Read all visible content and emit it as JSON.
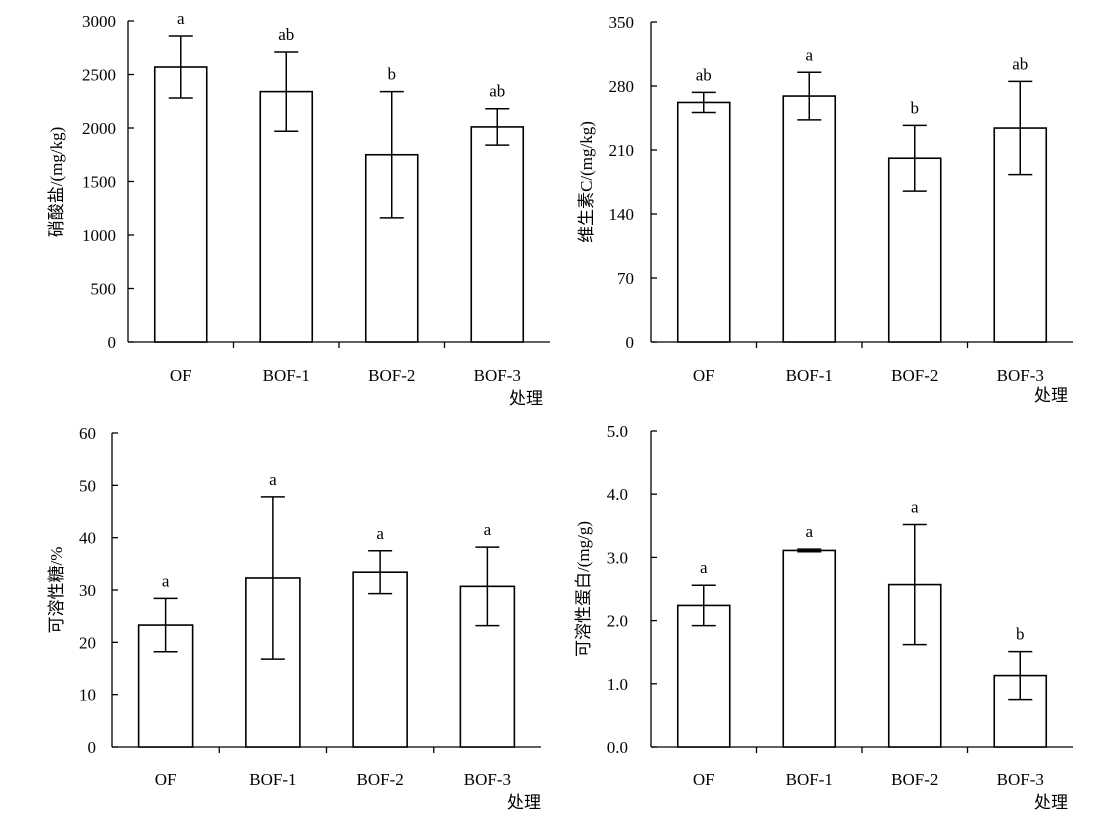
{
  "chart_data": [
    {
      "type": "bar",
      "categories": [
        "OF",
        "BOF-1",
        "BOF-2",
        "BOF-3"
      ],
      "values": [
        2570,
        2340,
        1750,
        2010
      ],
      "errors": [
        290,
        370,
        590,
        170
      ],
      "significance": [
        "a",
        "ab",
        "b",
        "ab"
      ],
      "ylabel": "硝酸盐/(mg/kg)",
      "xlabel": "处理",
      "ylim": [
        0,
        3000
      ],
      "yticks": [
        0,
        500,
        1000,
        1500,
        2000,
        2500,
        3000
      ],
      "ytick_labels": [
        "0",
        "500",
        "1000",
        "1500",
        "2000",
        "2500",
        "3000"
      ]
    },
    {
      "type": "bar",
      "categories": [
        "OF",
        "BOF-1",
        "BOF-2",
        "BOF-3"
      ],
      "values": [
        262,
        269,
        201,
        234
      ],
      "errors": [
        11,
        26,
        36,
        51
      ],
      "significance": [
        "ab",
        "a",
        "b",
        "ab"
      ],
      "ylabel": "维生素C/(mg/kg)",
      "xlabel": "处理",
      "ylim": [
        0,
        350
      ],
      "yticks": [
        0,
        70,
        140,
        210,
        280,
        350
      ],
      "ytick_labels": [
        "0",
        "70",
        "140",
        "210",
        "280",
        "350"
      ]
    },
    {
      "type": "bar",
      "categories": [
        "OF",
        "BOF-1",
        "BOF-2",
        "BOF-3"
      ],
      "values": [
        23.3,
        32.3,
        33.4,
        30.7
      ],
      "errors": [
        5.1,
        15.5,
        4.1,
        7.5
      ],
      "significance": [
        "a",
        "a",
        "a",
        "a"
      ],
      "ylabel": "可溶性糖/%",
      "xlabel": "处理",
      "ylim": [
        0,
        60
      ],
      "yticks": [
        0,
        10,
        20,
        30,
        40,
        50,
        60
      ],
      "ytick_labels": [
        "0",
        "10",
        "20",
        "30",
        "40",
        "50",
        "60"
      ]
    },
    {
      "type": "bar",
      "categories": [
        "OF",
        "BOF-1",
        "BOF-2",
        "BOF-3"
      ],
      "values": [
        2.24,
        3.11,
        2.57,
        1.13
      ],
      "errors": [
        0.32,
        0.02,
        0.95,
        0.38
      ],
      "significance": [
        "a",
        "a",
        "a",
        "b"
      ],
      "ylabel": "可溶性蛋白/(mg/g)",
      "xlabel": "处理",
      "ylim": [
        0,
        5
      ],
      "yticks": [
        0,
        1,
        2,
        3,
        4,
        5
      ],
      "ytick_labels": [
        "0.0",
        "1.0",
        "2.0",
        "3.0",
        "4.0",
        "5.0"
      ]
    }
  ]
}
